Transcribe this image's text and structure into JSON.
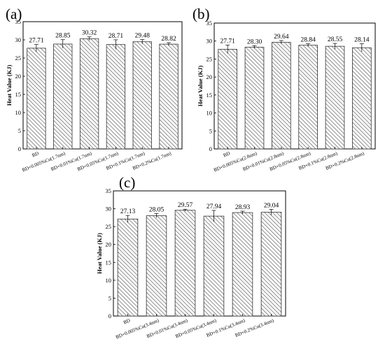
{
  "chart_data": [
    {
      "panel": "(a)",
      "type": "bar",
      "ylabel": "Heat Value (KJ)",
      "ylim": [
        0,
        35
      ],
      "yticks": [
        0,
        5,
        10,
        15,
        20,
        25,
        30,
        35
      ],
      "categories": [
        "BD",
        "BD+0.005%Cu(1.7nm)",
        "BD+0.01%Cu(1.7nm)",
        "BD+0.05%Cu(1.7nm)",
        "BD+0.1%Cu(1.7nm)",
        "BD+0.2%Cu(1.7nm)"
      ],
      "values": [
        27.71,
        28.85,
        30.32,
        28.71,
        29.48,
        28.82
      ],
      "labels": [
        "27.71",
        "28.85",
        "30.32",
        "28.71",
        "29.48",
        "28.82"
      ],
      "errors": [
        1.0,
        1.2,
        0.5,
        1.3,
        0.6,
        0.4
      ]
    },
    {
      "panel": "(b)",
      "type": "bar",
      "ylabel": "Heat Value (KJ)",
      "ylim": [
        0,
        35
      ],
      "yticks": [
        0,
        5,
        10,
        15,
        20,
        25,
        30,
        35
      ],
      "categories": [
        "BD",
        "BD+0.005%Cu(2.8nm)",
        "BD+0.01%Cu(2.8nm)",
        "BD+0.05%Cu(2.8nm)",
        "BD+0.1%Cu(2.8nm)",
        "BD+0.2%Cu(2.8nm)"
      ],
      "values": [
        27.71,
        28.3,
        29.64,
        28.84,
        28.55,
        28.14
      ],
      "labels": [
        "27.71",
        "28.30",
        "29.64",
        "28.84",
        "28.55",
        "28.14"
      ],
      "errors": [
        1.2,
        0.4,
        0.5,
        0.4,
        0.8,
        1.1
      ]
    },
    {
      "panel": "(c)",
      "type": "bar",
      "ylabel": "Heat Value (KJ)",
      "ylim": [
        0,
        35
      ],
      "yticks": [
        0,
        5,
        10,
        15,
        20,
        25,
        30,
        35
      ],
      "categories": [
        "BD",
        "BD+0.005%Cu(3.4nm)",
        "BD+0.01%Cu(3.4nm)",
        "BD+0.05%Cu(3.4nm)",
        "BD+0.1%Cu(3.4nm)",
        "BD+0.2%Cu(3.4nm)"
      ],
      "values": [
        27.13,
        28.05,
        29.57,
        27.94,
        28.93,
        29.04
      ],
      "labels": [
        "27.13",
        "28.05",
        "29.57",
        "27.94",
        "28.93",
        "29.04"
      ],
      "errors": [
        1.0,
        0.6,
        0.3,
        1.6,
        0.4,
        0.8
      ]
    }
  ]
}
